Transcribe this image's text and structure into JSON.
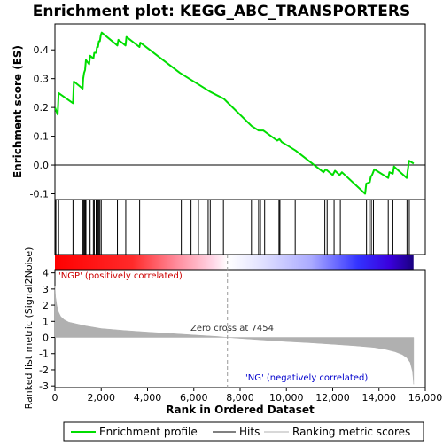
{
  "chart_data": {
    "type": "line",
    "title": "Enrichment plot: KEGG_ABC_TRANSPORTERS",
    "es_panel": {
      "ylabel": "Enrichment score (ES)",
      "ylim": [
        -0.12,
        0.49
      ],
      "yticks": [
        -0.1,
        0.0,
        0.1,
        0.2,
        0.3,
        0.4
      ],
      "ytick_labels": [
        "-0.1",
        "0.0",
        "0.1",
        "0.2",
        "0.3",
        "0.4"
      ],
      "zero_line": true,
      "color": "#00dd00",
      "x": [
        0,
        120,
        160,
        780,
        820,
        1200,
        1220,
        1260,
        1300,
        1340,
        1480,
        1520,
        1660,
        1700,
        1780,
        1820,
        1860,
        1900,
        1940,
        1980,
        2020,
        2700,
        2740,
        3050,
        3090,
        3650,
        3690,
        5400,
        5500,
        5900,
        6200,
        6600,
        6700,
        7300,
        8500,
        8800,
        9000,
        9600,
        9700,
        9800,
        10000,
        10400,
        11600,
        11700,
        12000,
        12100,
        12300,
        12400,
        13400,
        13450,
        13600,
        13650,
        13700,
        13800,
        14400,
        14450,
        14600,
        14650,
        15200,
        15300,
        15500
      ],
      "y": [
        0.2,
        0.175,
        0.25,
        0.215,
        0.29,
        0.265,
        0.3,
        0.32,
        0.33,
        0.365,
        0.35,
        0.38,
        0.37,
        0.39,
        0.39,
        0.41,
        0.41,
        0.43,
        0.43,
        0.45,
        0.46,
        0.415,
        0.435,
        0.415,
        0.445,
        0.41,
        0.425,
        0.32,
        0.315,
        0.295,
        0.28,
        0.26,
        0.255,
        0.23,
        0.135,
        0.12,
        0.12,
        0.085,
        0.09,
        0.08,
        0.07,
        0.05,
        -0.025,
        -0.015,
        -0.035,
        -0.02,
        -0.035,
        -0.025,
        -0.1,
        -0.065,
        -0.06,
        -0.04,
        -0.035,
        -0.015,
        -0.045,
        -0.025,
        -0.03,
        -0.005,
        -0.045,
        0.015,
        0.005
      ]
    },
    "hits": {
      "series_name": "Hits",
      "positions": [
        40,
        160,
        780,
        820,
        1180,
        1220,
        1260,
        1300,
        1340,
        1480,
        1520,
        1660,
        1700,
        1780,
        1820,
        1860,
        1900,
        1940,
        2000,
        2700,
        3060,
        3660,
        5460,
        5880,
        6200,
        6620,
        6710,
        7280,
        8490,
        8800,
        8880,
        9060,
        9680,
        9720,
        10380,
        11660,
        11760,
        12060,
        12330,
        13460,
        13580,
        13670,
        13760,
        14400,
        14600,
        15210,
        15310
      ]
    },
    "metric_panel": {
      "ylabel": "Ranked list metric (Signal2Noise)",
      "ylim": [
        -3.1,
        4.2
      ],
      "yticks": [
        -3,
        -2,
        -1,
        0,
        1,
        2,
        3,
        4
      ],
      "ytick_labels": [
        "-3",
        "-2",
        "-1",
        "0",
        "1",
        "2",
        "3",
        "4"
      ],
      "positive_label": "'NGP' (positively correlated)",
      "negative_label": "'NG' (negatively correlated)",
      "zero_cross_label": "Zero cross at 7454",
      "zero_cross": 7454,
      "profile_x": [
        0,
        30,
        80,
        150,
        250,
        400,
        600,
        900,
        1300,
        2000,
        3000,
        4000,
        5000,
        6000,
        7000,
        7454,
        8000,
        9000,
        10000,
        11000,
        12000,
        13000,
        13800,
        14300,
        14700,
        15000,
        15200,
        15350,
        15450,
        15500
      ],
      "profile_y": [
        3.2,
        2.5,
        2.0,
        1.6,
        1.3,
        1.1,
        0.95,
        0.85,
        0.72,
        0.55,
        0.43,
        0.33,
        0.24,
        0.15,
        0.06,
        0.0,
        -0.06,
        -0.16,
        -0.25,
        -0.33,
        -0.42,
        -0.52,
        -0.62,
        -0.74,
        -0.88,
        -1.05,
        -1.25,
        -1.55,
        -2.1,
        -2.9
      ],
      "color": "#b0b0b0"
    },
    "xaxis": {
      "label": "Rank in Ordered Dataset",
      "xlim": [
        0,
        16000
      ],
      "ticks": [
        0,
        2000,
        4000,
        6000,
        8000,
        10000,
        12000,
        14000,
        16000
      ],
      "tick_labels": [
        "0",
        "2,000",
        "4,000",
        "6,000",
        "8,000",
        "10,000",
        "12,000",
        "14,000",
        "16,000"
      ],
      "n_genes": 15500
    },
    "legend": {
      "placement": "bottom",
      "entries": [
        {
          "label": "Enrichment profile",
          "color": "#00dd00",
          "kind": "line"
        },
        {
          "label": "Hits",
          "color": "#000000",
          "kind": "line"
        },
        {
          "label": "Ranking metric scores",
          "color": "#b0b0b0",
          "kind": "line"
        }
      ]
    },
    "colors": {
      "positive": "#ff0000",
      "negative": "#0000ff",
      "positive_label": "#cc0000",
      "negative_label": "#0000cc",
      "band_end_neg": "#1a0080"
    }
  }
}
